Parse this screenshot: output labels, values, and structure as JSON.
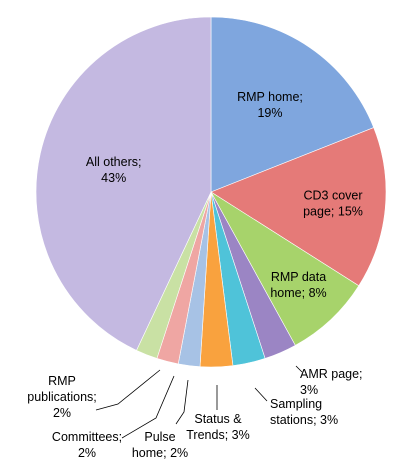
{
  "chart_data": {
    "type": "pie",
    "slices": [
      {
        "label_lines": [
          "RMP home;",
          "19%"
        ],
        "value": 19,
        "color": "#7FA6DE"
      },
      {
        "label_lines": [
          "CD3 cover",
          "page; 15%"
        ],
        "value": 15,
        "color": "#E57A78"
      },
      {
        "label_lines": [
          "RMP data",
          "home; 8%"
        ],
        "value": 8,
        "color": "#A7D36B"
      },
      {
        "label_lines": [
          "AMR page;",
          "3%"
        ],
        "value": 3,
        "color": "#9B85C4"
      },
      {
        "label_lines": [
          "Sampling",
          "stations; 3%"
        ],
        "value": 3,
        "color": "#4FC3D9"
      },
      {
        "label_lines": [
          "Status &",
          "Trends; 3%"
        ],
        "value": 3,
        "color": "#F9A23E"
      },
      {
        "label_lines": [
          "Pulse",
          "home; 2%"
        ],
        "value": 2,
        "color": "#A7C2E5"
      },
      {
        "label_lines": [
          "Committees;",
          "2%"
        ],
        "value": 2,
        "color": "#EFA6A3"
      },
      {
        "label_lines": [
          "RMP",
          "publications;",
          "2%"
        ],
        "value": 2,
        "color": "#C9E1A4"
      },
      {
        "label_lines": [
          "All others;",
          "43%"
        ],
        "value": 43,
        "color": "#C4B9E1"
      }
    ]
  }
}
